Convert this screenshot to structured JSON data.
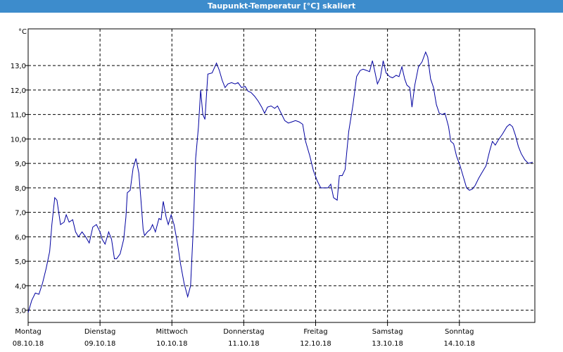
{
  "window": {
    "title": "Taupunkt-Temperatur [°C] skaliert"
  },
  "chart_data": {
    "type": "line",
    "title": "Taupunkt-Temperatur [°C] skaliert",
    "ylabel": "°C",
    "ylim": [
      2.5,
      14.5
    ],
    "yticks": [
      3.0,
      4.0,
      5.0,
      6.0,
      7.0,
      8.0,
      9.0,
      10.0,
      11.0,
      12.0,
      13.0
    ],
    "ytick_labels": [
      "3,0",
      "4,0",
      "5,0",
      "6,0",
      "7,0",
      "8,0",
      "9,0",
      "10,0",
      "11,0",
      "12,0",
      "13,0"
    ],
    "xlim": [
      0,
      7.05
    ],
    "xticks": [
      {
        "x": 0,
        "day": "Montag",
        "date": "08.10.18"
      },
      {
        "x": 1,
        "day": "Dienstag",
        "date": "09.10.18"
      },
      {
        "x": 2,
        "day": "Mittwoch",
        "date": "10.10.18"
      },
      {
        "x": 3,
        "day": "Donnerstag",
        "date": "11.10.18"
      },
      {
        "x": 4,
        "day": "Freitag",
        "date": "12.10.18"
      },
      {
        "x": 5,
        "day": "Samstag",
        "date": "13.10.18"
      },
      {
        "x": 6,
        "day": "Sonntag",
        "date": "14.10.18"
      }
    ],
    "grid": true,
    "series": [
      {
        "color": "#0000a0",
        "points": [
          [
            0.0,
            2.9
          ],
          [
            0.05,
            3.4
          ],
          [
            0.1,
            3.7
          ],
          [
            0.15,
            3.65
          ],
          [
            0.2,
            4.1
          ],
          [
            0.25,
            4.7
          ],
          [
            0.3,
            5.4
          ],
          [
            0.33,
            6.5
          ],
          [
            0.37,
            7.6
          ],
          [
            0.4,
            7.5
          ],
          [
            0.45,
            6.5
          ],
          [
            0.5,
            6.6
          ],
          [
            0.53,
            6.9
          ],
          [
            0.57,
            6.6
          ],
          [
            0.62,
            6.7
          ],
          [
            0.66,
            6.2
          ],
          [
            0.7,
            6.0
          ],
          [
            0.75,
            6.2
          ],
          [
            0.8,
            6.0
          ],
          [
            0.85,
            5.75
          ],
          [
            0.9,
            6.4
          ],
          [
            0.95,
            6.5
          ],
          [
            1.0,
            6.2
          ],
          [
            1.03,
            5.9
          ],
          [
            1.07,
            5.7
          ],
          [
            1.12,
            6.2
          ],
          [
            1.16,
            5.9
          ],
          [
            1.2,
            5.1
          ],
          [
            1.23,
            5.1
          ],
          [
            1.28,
            5.3
          ],
          [
            1.33,
            5.9
          ],
          [
            1.36,
            6.8
          ],
          [
            1.38,
            7.8
          ],
          [
            1.42,
            7.9
          ],
          [
            1.46,
            8.8
          ],
          [
            1.5,
            9.2
          ],
          [
            1.54,
            8.6
          ],
          [
            1.57,
            7.5
          ],
          [
            1.6,
            6.3
          ],
          [
            1.62,
            6.05
          ],
          [
            1.66,
            6.2
          ],
          [
            1.7,
            6.3
          ],
          [
            1.73,
            6.5
          ],
          [
            1.77,
            6.2
          ],
          [
            1.82,
            6.75
          ],
          [
            1.85,
            6.7
          ],
          [
            1.88,
            7.45
          ],
          [
            1.92,
            6.8
          ],
          [
            1.95,
            6.5
          ],
          [
            1.99,
            6.9
          ],
          [
            2.03,
            6.5
          ],
          [
            2.08,
            5.7
          ],
          [
            2.12,
            4.9
          ],
          [
            2.17,
            4.1
          ],
          [
            2.22,
            3.55
          ],
          [
            2.26,
            4.0
          ],
          [
            2.3,
            6.5
          ],
          [
            2.33,
            9.2
          ],
          [
            2.37,
            10.5
          ],
          [
            2.4,
            12.0
          ],
          [
            2.43,
            11.0
          ],
          [
            2.46,
            10.8
          ],
          [
            2.5,
            12.65
          ],
          [
            2.56,
            12.7
          ],
          [
            2.62,
            13.1
          ],
          [
            2.66,
            12.8
          ],
          [
            2.7,
            12.4
          ],
          [
            2.74,
            12.1
          ],
          [
            2.78,
            12.25
          ],
          [
            2.83,
            12.3
          ],
          [
            2.88,
            12.25
          ],
          [
            2.92,
            12.3
          ],
          [
            2.97,
            12.1
          ],
          [
            3.02,
            12.15
          ],
          [
            3.06,
            11.95
          ],
          [
            3.1,
            11.9
          ],
          [
            3.15,
            11.75
          ],
          [
            3.2,
            11.55
          ],
          [
            3.25,
            11.3
          ],
          [
            3.29,
            11.05
          ],
          [
            3.33,
            11.3
          ],
          [
            3.38,
            11.35
          ],
          [
            3.43,
            11.25
          ],
          [
            3.47,
            11.35
          ],
          [
            3.52,
            11.05
          ],
          [
            3.57,
            10.75
          ],
          [
            3.62,
            10.65
          ],
          [
            3.67,
            10.7
          ],
          [
            3.72,
            10.75
          ],
          [
            3.77,
            10.7
          ],
          [
            3.82,
            10.6
          ],
          [
            3.86,
            9.9
          ],
          [
            3.92,
            9.3
          ],
          [
            3.97,
            8.7
          ],
          [
            4.02,
            8.3
          ],
          [
            4.07,
            8.0
          ],
          [
            4.12,
            8.0
          ],
          [
            4.17,
            8.0
          ],
          [
            4.21,
            8.15
          ],
          [
            4.25,
            7.6
          ],
          [
            4.3,
            7.5
          ],
          [
            4.33,
            8.5
          ],
          [
            4.37,
            8.5
          ],
          [
            4.41,
            8.75
          ],
          [
            4.46,
            10.3
          ],
          [
            4.52,
            11.4
          ],
          [
            4.57,
            12.55
          ],
          [
            4.62,
            12.8
          ],
          [
            4.66,
            12.85
          ],
          [
            4.71,
            12.8
          ],
          [
            4.75,
            12.75
          ],
          [
            4.79,
            13.2
          ],
          [
            4.82,
            12.8
          ],
          [
            4.86,
            12.25
          ],
          [
            4.9,
            12.5
          ],
          [
            4.94,
            13.2
          ],
          [
            4.98,
            12.7
          ],
          [
            5.03,
            12.55
          ],
          [
            5.07,
            12.5
          ],
          [
            5.12,
            12.6
          ],
          [
            5.16,
            12.55
          ],
          [
            5.2,
            12.95
          ],
          [
            5.24,
            12.45
          ],
          [
            5.27,
            12.2
          ],
          [
            5.31,
            12.1
          ],
          [
            5.34,
            11.3
          ],
          [
            5.38,
            12.2
          ],
          [
            5.43,
            12.95
          ],
          [
            5.48,
            13.15
          ],
          [
            5.53,
            13.55
          ],
          [
            5.56,
            13.35
          ],
          [
            5.6,
            12.45
          ],
          [
            5.64,
            12.1
          ],
          [
            5.68,
            11.4
          ],
          [
            5.72,
            11.05
          ],
          [
            5.76,
            11.0
          ],
          [
            5.8,
            11.05
          ],
          [
            5.85,
            10.5
          ],
          [
            5.88,
            9.9
          ],
          [
            5.92,
            9.8
          ],
          [
            5.96,
            9.3
          ],
          [
            6.01,
            8.9
          ],
          [
            6.06,
            8.4
          ],
          [
            6.1,
            8.0
          ],
          [
            6.14,
            7.9
          ],
          [
            6.18,
            7.95
          ],
          [
            6.22,
            8.1
          ],
          [
            6.27,
            8.4
          ],
          [
            6.32,
            8.65
          ],
          [
            6.37,
            8.9
          ],
          [
            6.42,
            9.5
          ],
          [
            6.46,
            9.9
          ],
          [
            6.5,
            9.75
          ],
          [
            6.54,
            9.95
          ],
          [
            6.6,
            10.2
          ],
          [
            6.66,
            10.5
          ],
          [
            6.7,
            10.6
          ],
          [
            6.74,
            10.5
          ],
          [
            6.78,
            10.15
          ],
          [
            6.82,
            9.7
          ],
          [
            6.86,
            9.4
          ],
          [
            6.91,
            9.15
          ],
          [
            6.96,
            9.0
          ],
          [
            7.02,
            9.05
          ]
        ]
      }
    ]
  }
}
